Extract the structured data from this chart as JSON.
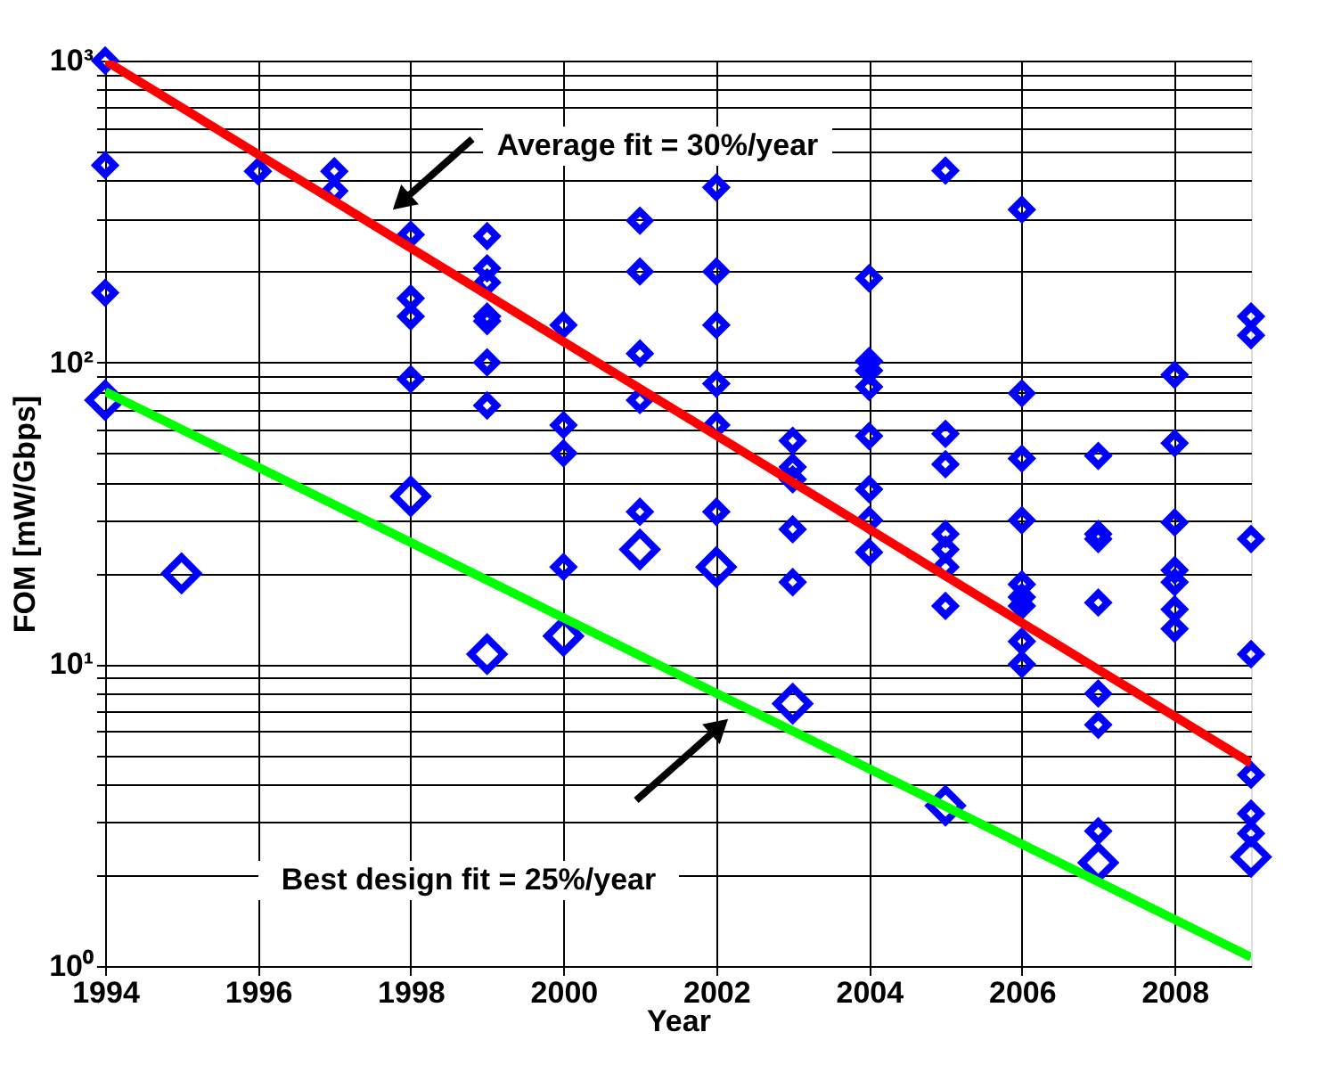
{
  "chart_data": {
    "type": "scatter",
    "xlabel": "Year",
    "ylabel": "FOM [mW/Gbps]",
    "xlim": [
      1994,
      2009
    ],
    "xticks": [
      1994,
      1996,
      1998,
      2000,
      2002,
      2004,
      2006,
      2008
    ],
    "ylim": [
      1,
      1000
    ],
    "log": "y",
    "yticks": [
      {
        "value": 1,
        "label": "10⁰"
      },
      {
        "value": 2,
        "label": null
      },
      {
        "value": 3,
        "label": null
      },
      {
        "value": 4,
        "label": null
      },
      {
        "value": 5,
        "label": null
      },
      {
        "value": 6,
        "label": null
      },
      {
        "value": 7,
        "label": null
      },
      {
        "value": 8,
        "label": null
      },
      {
        "value": 9,
        "label": null
      },
      {
        "value": 10,
        "label": "10¹"
      },
      {
        "value": 20,
        "label": null
      },
      {
        "value": 30,
        "label": null
      },
      {
        "value": 40,
        "label": null
      },
      {
        "value": 50,
        "label": null
      },
      {
        "value": 60,
        "label": null
      },
      {
        "value": 70,
        "label": null
      },
      {
        "value": 80,
        "label": null
      },
      {
        "value": 90,
        "label": null
      },
      {
        "value": 100,
        "label": "10²"
      },
      {
        "value": 200,
        "label": null
      },
      {
        "value": 300,
        "label": null
      },
      {
        "value": 400,
        "label": null
      },
      {
        "value": 500,
        "label": null
      },
      {
        "value": 600,
        "label": null
      },
      {
        "value": 700,
        "label": null
      },
      {
        "value": 800,
        "label": null
      },
      {
        "value": 900,
        "label": null
      },
      {
        "value": 1000,
        "label": "10³"
      }
    ],
    "grid": true,
    "line_style": "solid",
    "series": [
      {
        "color": "#0000ff",
        "marker": "diamond",
        "x": [
          1994,
          1994,
          1994,
          1996,
          1997,
          1997,
          1998,
          1998,
          1998,
          1998,
          1999,
          1999,
          1999,
          1999,
          1999,
          1999,
          1999,
          2000,
          2000,
          2000,
          2000,
          2001,
          2001,
          2001,
          2001,
          2001,
          2002,
          2002,
          2002,
          2002,
          2002,
          2002,
          2003,
          2003,
          2003,
          2003,
          2003,
          2004,
          2004,
          2004,
          2004,
          2004,
          2004,
          2004,
          2004,
          2005,
          2005,
          2005,
          2005,
          2005,
          2005,
          2005,
          2006,
          2006,
          2006,
          2006,
          2006,
          2006,
          2006,
          2006,
          2006,
          2007,
          2007,
          2007,
          2007,
          2007,
          2007,
          2007,
          2008,
          2008,
          2008,
          2008,
          2008,
          2008,
          2008,
          2009,
          2009,
          2009,
          2009,
          2009,
          2009,
          2009
        ],
        "values": [
          1000,
          450,
          170,
          430,
          430,
          370,
          265,
          163,
          142,
          88,
          262,
          205,
          184,
          142,
          137,
          100,
          72,
          133,
          62,
          50,
          21,
          295,
          200,
          107,
          75,
          32,
          380,
          200,
          133,
          85,
          62,
          32,
          55,
          45,
          41,
          28,
          18.7,
          190,
          101,
          94,
          83,
          57,
          38,
          30,
          23.5,
          432,
          58,
          46,
          27,
          24,
          21,
          15.6,
          321,
          79,
          48,
          30,
          18.4,
          16.7,
          15.6,
          11.9,
          10,
          49,
          27,
          26,
          16,
          8,
          6.3,
          2.8,
          91,
          54,
          29.5,
          20.5,
          18.7,
          15.2,
          13.1,
          142,
          123,
          26,
          10.8,
          4.3,
          3.2,
          2.75
        ]
      },
      {
        "color": "#0000ff",
        "marker": "diamond",
        "x": [
          1994,
          1995,
          1998,
          1999,
          2000,
          2001,
          2002,
          2003,
          2005,
          2007,
          2009
        ],
        "values": [
          75,
          20,
          36,
          10.8,
          12.4,
          24,
          21,
          7.4,
          3.4,
          2.2,
          2.3
        ]
      },
      {
        "type": "line",
        "color": "#ff0000",
        "x": [
          1994,
          2009
        ],
        "values": [
          1000,
          4.7
        ]
      },
      {
        "type": "line",
        "color": "#00ff00",
        "x": [
          1994,
          2009
        ],
        "values": [
          80,
          1.07
        ]
      }
    ],
    "annotations": [
      "Average fit = 30%/year",
      "Best design fit = 25%/year"
    ]
  }
}
